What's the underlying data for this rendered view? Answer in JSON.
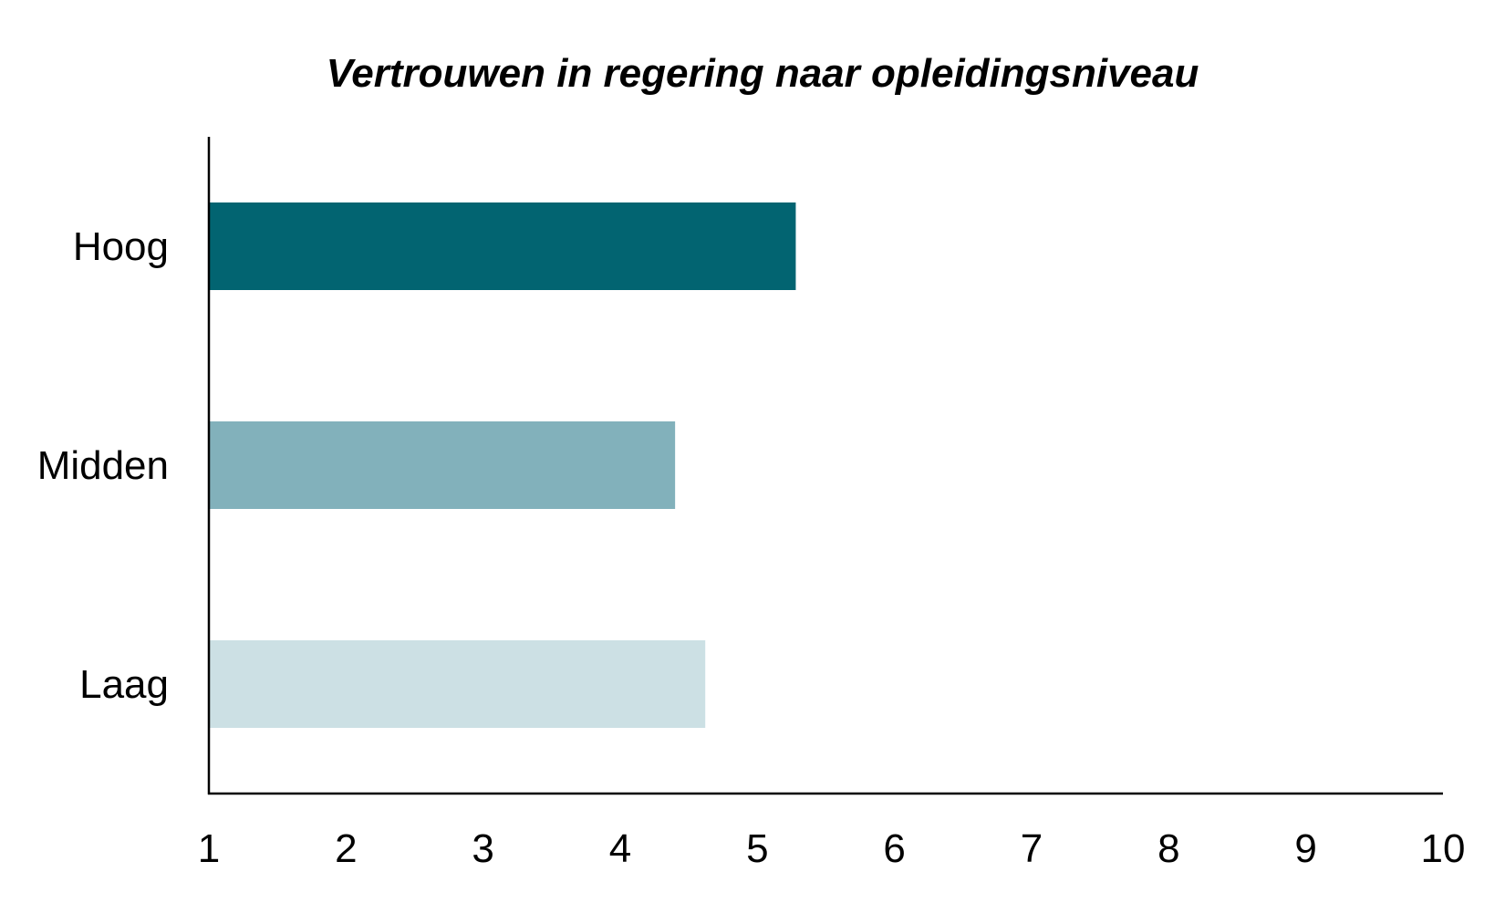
{
  "chart_data": {
    "type": "bar",
    "orientation": "horizontal",
    "title": "Vertrouwen in regering naar opleidingsniveau",
    "xlabel": "",
    "ylabel": "",
    "categories": [
      "Hoog",
      "Midden",
      "Laag"
    ],
    "values": [
      5.28,
      4.4,
      4.62
    ],
    "colors": [
      "#026471",
      "#82b1bb",
      "#cce0e4"
    ],
    "xlim": [
      1,
      10
    ],
    "xticks": [
      1,
      2,
      3,
      4,
      5,
      6,
      7,
      8,
      9,
      10
    ],
    "grid": false,
    "legend": "none"
  }
}
